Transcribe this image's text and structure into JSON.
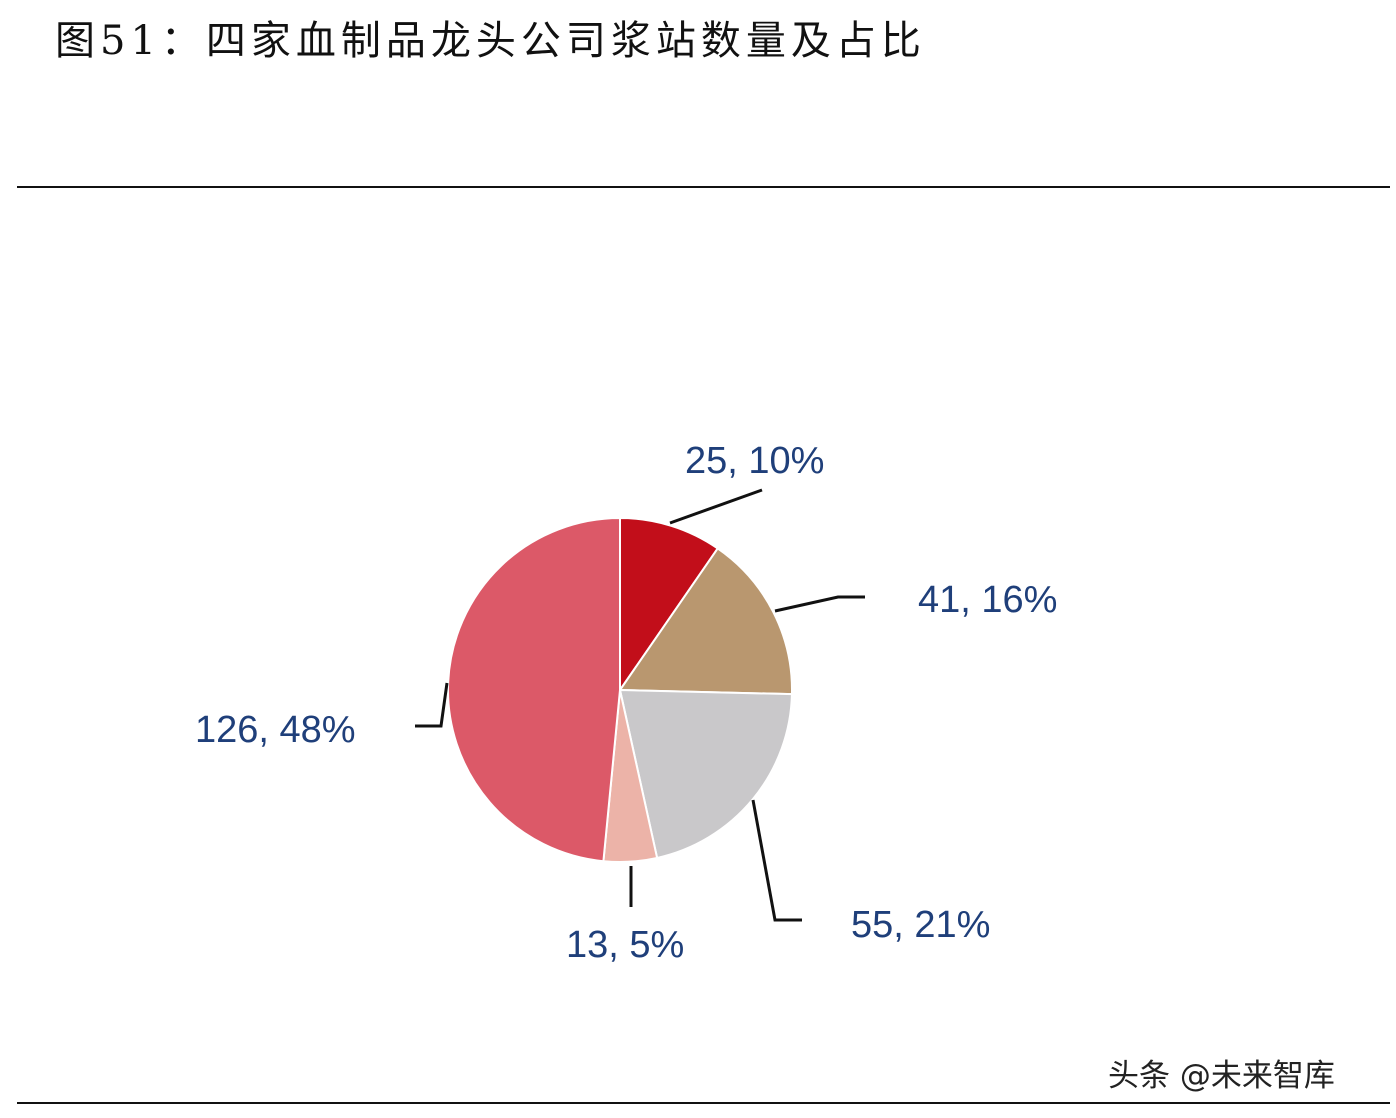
{
  "title": "图51：四家血制品龙头公司浆站数量及占比",
  "watermark": "头条 @未来智库",
  "chart_data": {
    "type": "pie",
    "start_angle": "12 o'clock, clockwise",
    "values": [
      25,
      41,
      55,
      13,
      126
    ],
    "percents": [
      10,
      16,
      21,
      5,
      48
    ],
    "labels": [
      "25, 10%",
      "41, 16%",
      "55, 21%",
      "13, 5%",
      "126, 48%"
    ],
    "colors": [
      "#C20E1A",
      "#B9976F",
      "#C9C8CA",
      "#ECB3A8",
      "#DC5968"
    ],
    "label_color": "#1F3F7A",
    "legend": "none"
  }
}
